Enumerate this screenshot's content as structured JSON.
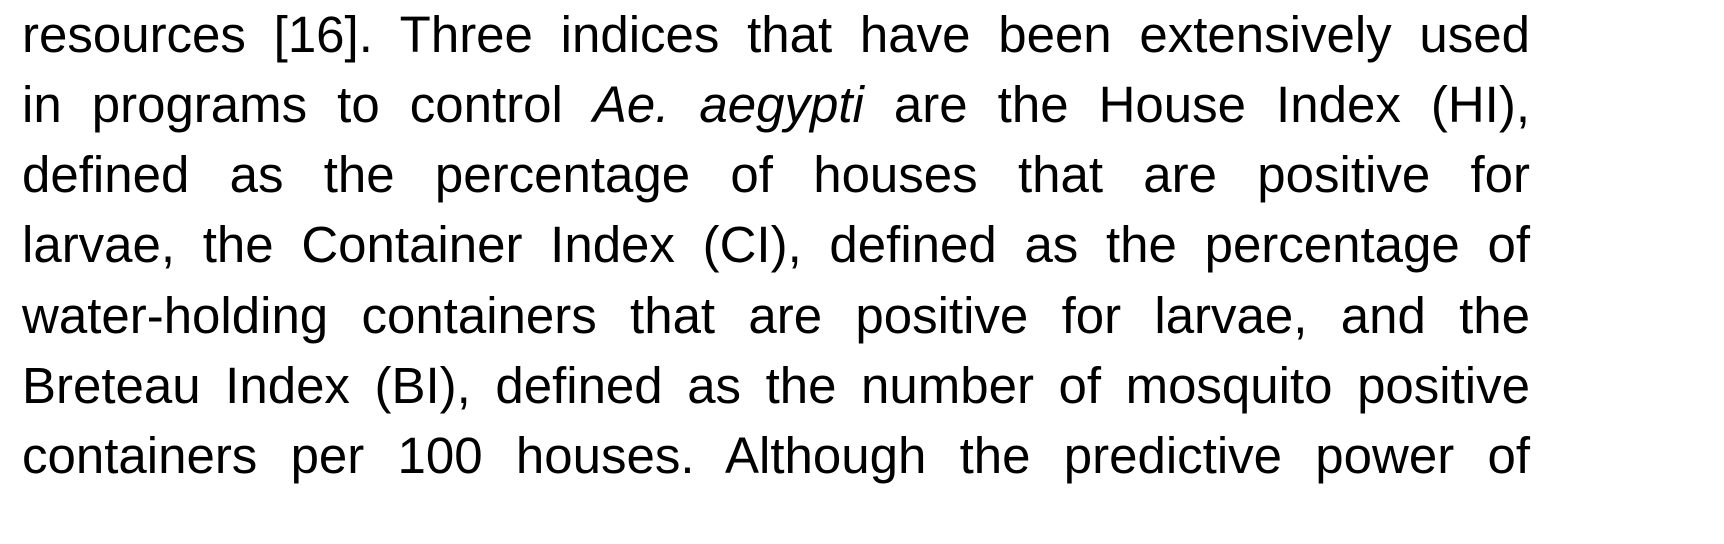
{
  "paragraph": {
    "lines": [
      "resources [16]. Three indices that have been extensively used",
      {
        "before": "in programs to control ",
        "italic": "Ae. aegypti",
        "after": " are the House Index (HI),"
      },
      "defined as the percentage of houses that are positive for",
      "larvae, the Container Index (CI), defined as the percentage of",
      "water-holding containers that are positive for larvae, and the",
      "Breteau Index (BI), defined as the number of mosquito positive",
      "containers per 100 houses. Although the predictive power of"
    ]
  }
}
